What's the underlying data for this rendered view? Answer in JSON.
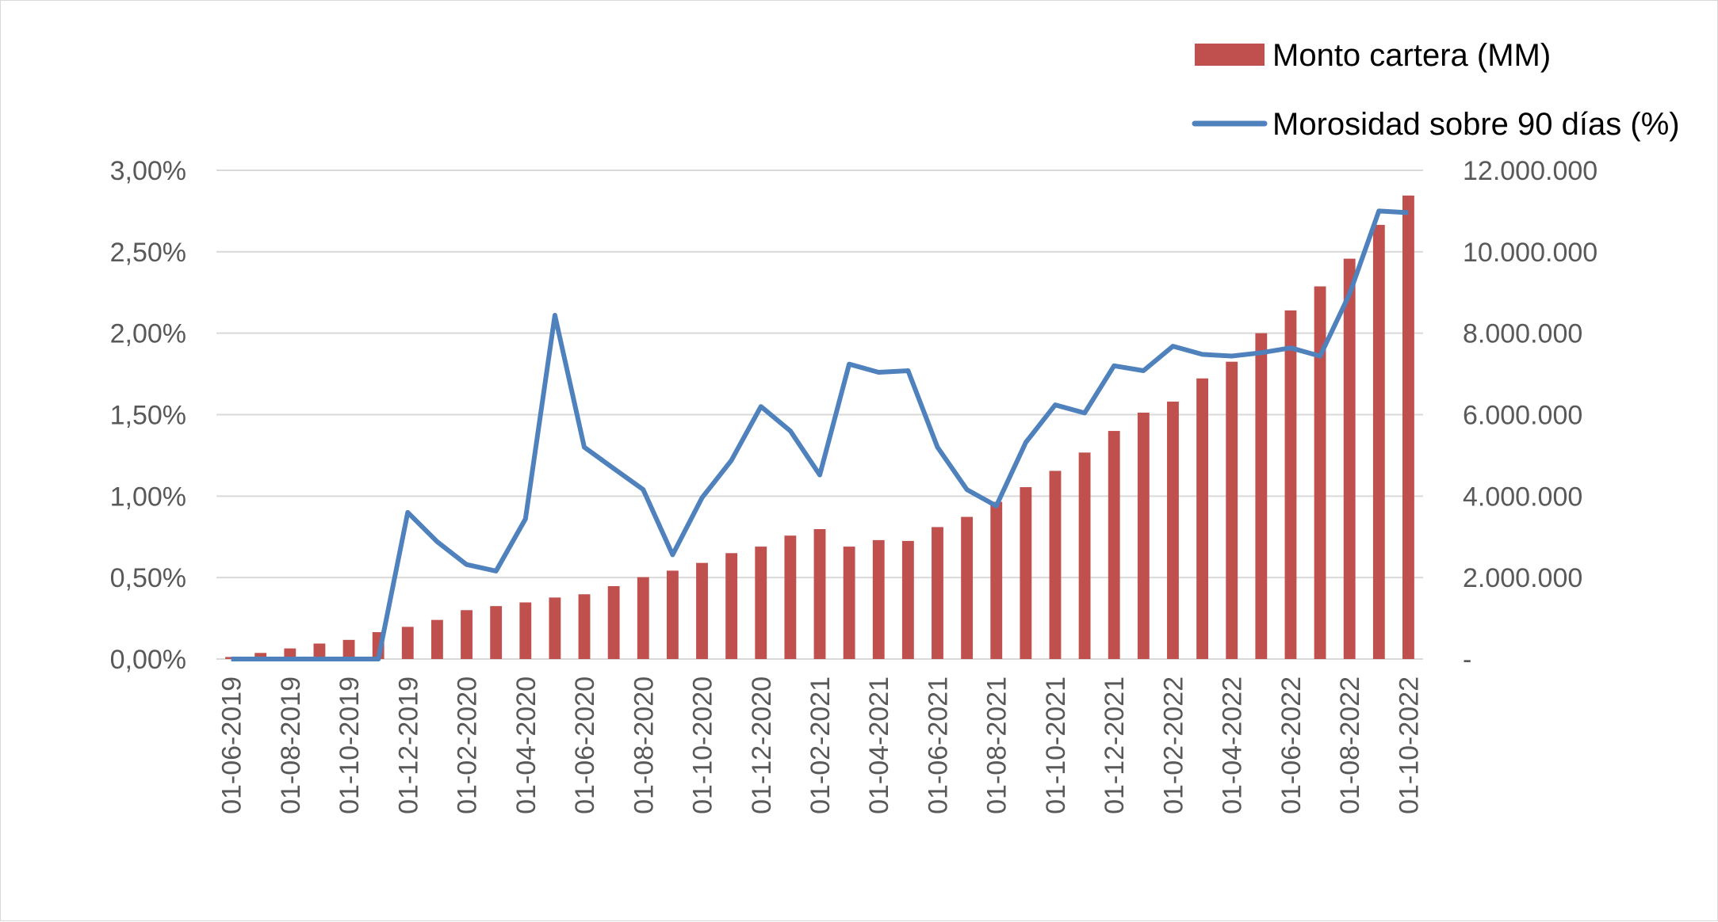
{
  "chart_data": {
    "type": "bar",
    "title": "",
    "xlabel": "",
    "ylabel": "",
    "y2label": "",
    "legend_position": "top-right",
    "grid": true,
    "colors": {
      "bar": "#C0504D",
      "line": "#4F81BD",
      "grid": "#d9d9d9",
      "text": "#595959"
    },
    "x": [
      "01-06-2019",
      "01-07-2019",
      "01-08-2019",
      "01-09-2019",
      "01-10-2019",
      "01-11-2019",
      "01-12-2019",
      "01-01-2020",
      "01-02-2020",
      "01-03-2020",
      "01-04-2020",
      "01-05-2020",
      "01-06-2020",
      "01-07-2020",
      "01-08-2020",
      "01-09-2020",
      "01-10-2020",
      "01-11-2020",
      "01-12-2020",
      "01-01-2021",
      "01-02-2021",
      "01-03-2021",
      "01-04-2021",
      "01-05-2021",
      "01-06-2021",
      "01-07-2021",
      "01-08-2021",
      "01-09-2021",
      "01-10-2021",
      "01-11-2021",
      "01-12-2021",
      "01-01-2022",
      "01-02-2022",
      "01-03-2022",
      "01-04-2022",
      "01-05-2022",
      "01-06-2022",
      "01-07-2022",
      "01-08-2022",
      "01-09-2022",
      "01-10-2022"
    ],
    "x_tick_labels": [
      "01-06-2019",
      "01-08-2019",
      "01-10-2019",
      "01-12-2019",
      "01-02-2020",
      "01-04-2020",
      "01-06-2020",
      "01-08-2020",
      "01-10-2020",
      "01-12-2020",
      "01-02-2021",
      "01-04-2021",
      "01-06-2021",
      "01-08-2021",
      "01-10-2021",
      "01-12-2021",
      "01-02-2022",
      "01-04-2022",
      "01-06-2022",
      "01-08-2022",
      "01-10-2022"
    ],
    "y_left": {
      "ylim": [
        0,
        3.0
      ],
      "ticks": [
        0,
        0.5,
        1.0,
        1.5,
        2.0,
        2.5,
        3.0
      ],
      "tick_labels": [
        "0,00%",
        "0,50%",
        "1,00%",
        "1,50%",
        "2,00%",
        "2,50%",
        "3,00%"
      ]
    },
    "y_right": {
      "ylim": [
        0,
        12000000
      ],
      "ticks": [
        0,
        2000000,
        4000000,
        6000000,
        8000000,
        10000000,
        12000000
      ],
      "tick_labels": [
        "-",
        "2.000.000",
        "4.000.000",
        "6.000.000",
        "8.000.000",
        "10.000.000",
        "12.000.000"
      ]
    },
    "series": [
      {
        "name": "Monto cartera (MM)",
        "type": "bar",
        "axis": "right",
        "values": [
          50000,
          150000,
          260000,
          380000,
          470000,
          660000,
          790000,
          960000,
          1200000,
          1300000,
          1390000,
          1510000,
          1590000,
          1790000,
          2010000,
          2170000,
          2360000,
          2600000,
          2760000,
          3030000,
          3190000,
          2760000,
          2920000,
          2900000,
          3240000,
          3490000,
          3860000,
          4220000,
          4620000,
          5070000,
          5600000,
          6050000,
          6320000,
          6890000,
          7300000,
          8000000,
          8560000,
          9150000,
          9830000,
          10660000,
          11380000
        ]
      },
      {
        "name": "Morosidad sobre 90 días (%)",
        "type": "line",
        "axis": "left",
        "values": [
          0,
          0,
          0,
          0,
          0,
          0,
          0.9,
          0.72,
          0.58,
          0.54,
          0.86,
          2.11,
          1.3,
          1.17,
          1.04,
          0.64,
          0.99,
          1.22,
          1.55,
          1.4,
          1.13,
          1.81,
          1.76,
          1.77,
          1.3,
          1.04,
          0.94,
          1.33,
          1.56,
          1.51,
          1.8,
          1.77,
          1.92,
          1.87,
          1.86,
          1.88,
          1.91,
          1.86,
          2.24,
          2.75,
          2.74
        ]
      }
    ]
  }
}
